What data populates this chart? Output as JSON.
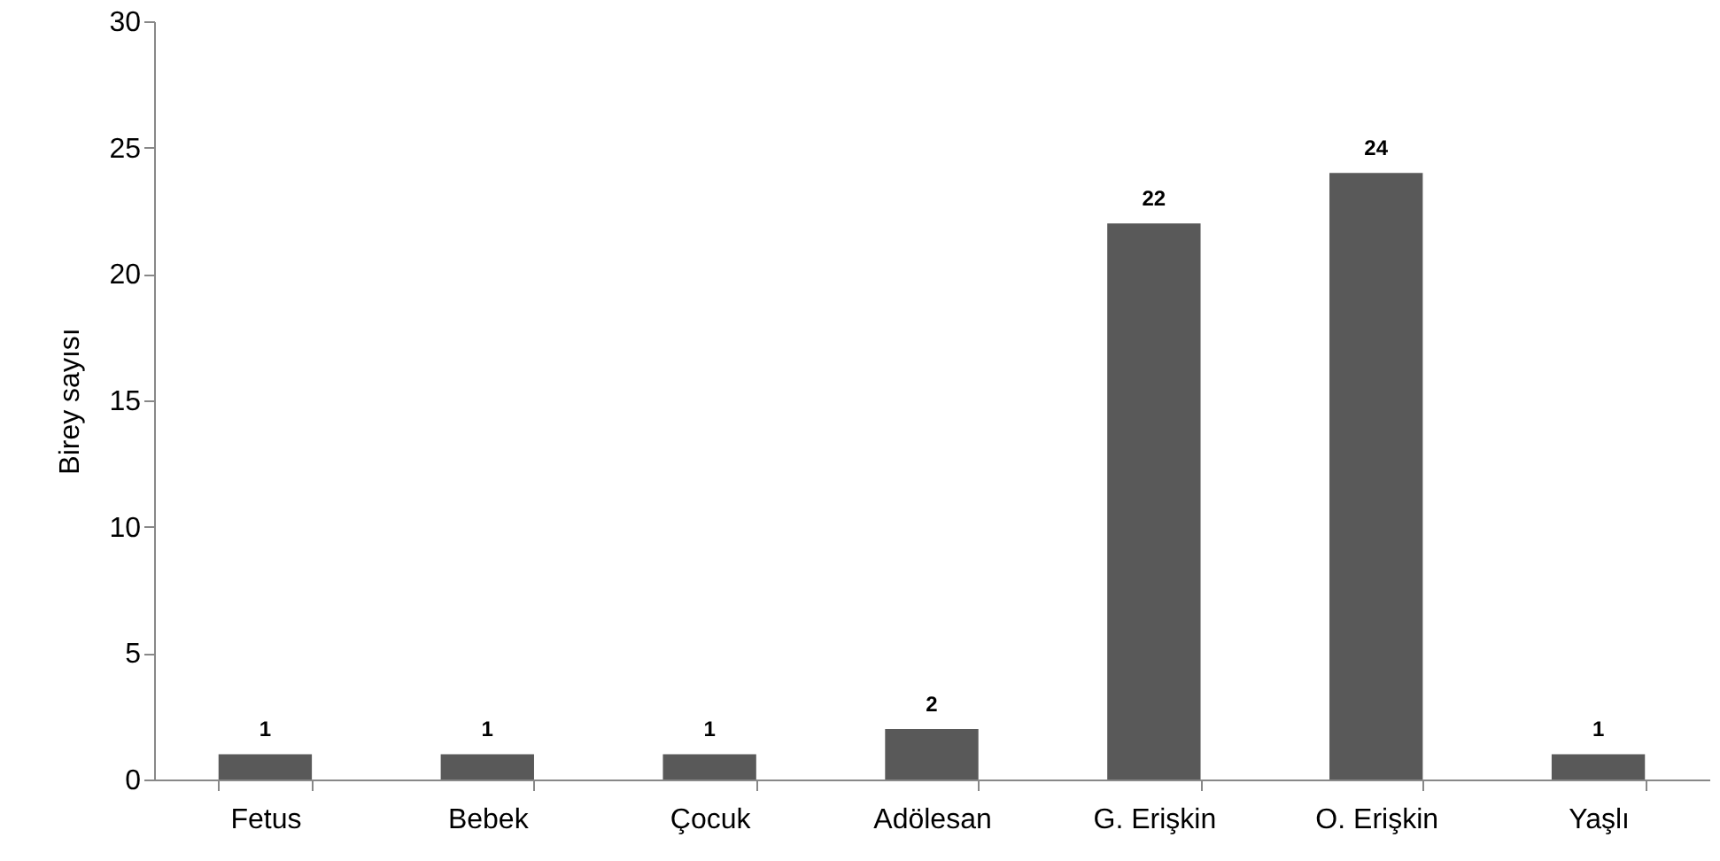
{
  "chart_data": {
    "type": "bar",
    "ylabel": "Birey sayısı",
    "categories": [
      "Fetus",
      "Bebek",
      "Çocuk",
      "Adölesan",
      "G. Erişkin",
      "O. Erişkin",
      "Yaşlı"
    ],
    "values": [
      1,
      1,
      1,
      2,
      22,
      24,
      1
    ],
    "color": "#595959",
    "ylim": [
      0,
      30
    ],
    "yticks": [
      0,
      5,
      10,
      15,
      20,
      25,
      30
    ],
    "grid": false,
    "data_labels": true
  }
}
